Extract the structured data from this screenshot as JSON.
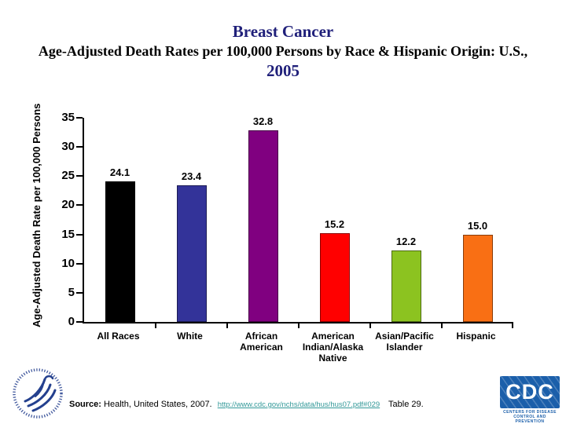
{
  "title": {
    "line1": "Breast Cancer",
    "line2": "Age-Adjusted Death Rates per 100,000 Persons by Race & Hispanic Origin: U.S.,",
    "line3": "2005",
    "accent_color": "#20207A"
  },
  "chart_data": {
    "type": "bar",
    "title": "Breast Cancer  Age-Adjusted Death Rates per 100,000 Persons by Race & Hispanic Origin: U.S., 2005",
    "xlabel": "",
    "ylabel": "Age-Adjusted Death Rate per 100,000 Persons",
    "ylim": [
      0,
      35
    ],
    "ytick_step": 5,
    "grid": false,
    "legend": false,
    "categories": [
      "All Races",
      "White",
      "African American",
      "American Indian/Alaska Native",
      "Asian/Pacific Islander",
      "Hispanic"
    ],
    "category_lines": [
      [
        "All Races"
      ],
      [
        "White"
      ],
      [
        "African",
        "American"
      ],
      [
        "American",
        "Indian/Alaska",
        "Native"
      ],
      [
        "Asian/Pacific",
        "Islander"
      ],
      [
        "Hispanic"
      ]
    ],
    "values": [
      24.1,
      23.4,
      32.8,
      15.2,
      12.2,
      15.0
    ],
    "value_labels": [
      "24.1",
      "23.4",
      "32.8",
      "15.2",
      "12.2",
      "15.0"
    ],
    "bar_colors": [
      "#000000",
      "#333399",
      "#800080",
      "#FF0000",
      "#8CC320",
      "#F96F14"
    ]
  },
  "footer": {
    "source_label": "Source:",
    "source_text": "Health, United States, 2007.",
    "source_link": "http://www.cdc.gov/nchs/data/hus/hus07.pdf#029",
    "source_suffix": "Table 29.",
    "link_color": "#339999"
  },
  "logos": {
    "hhs_icon": "hhs-eagle-logo",
    "cdc_acronym": "CDC",
    "cdc_name_line1": "CENTERS FOR DISEASE",
    "cdc_name_line2": "CONTROL AND PREVENTION"
  }
}
